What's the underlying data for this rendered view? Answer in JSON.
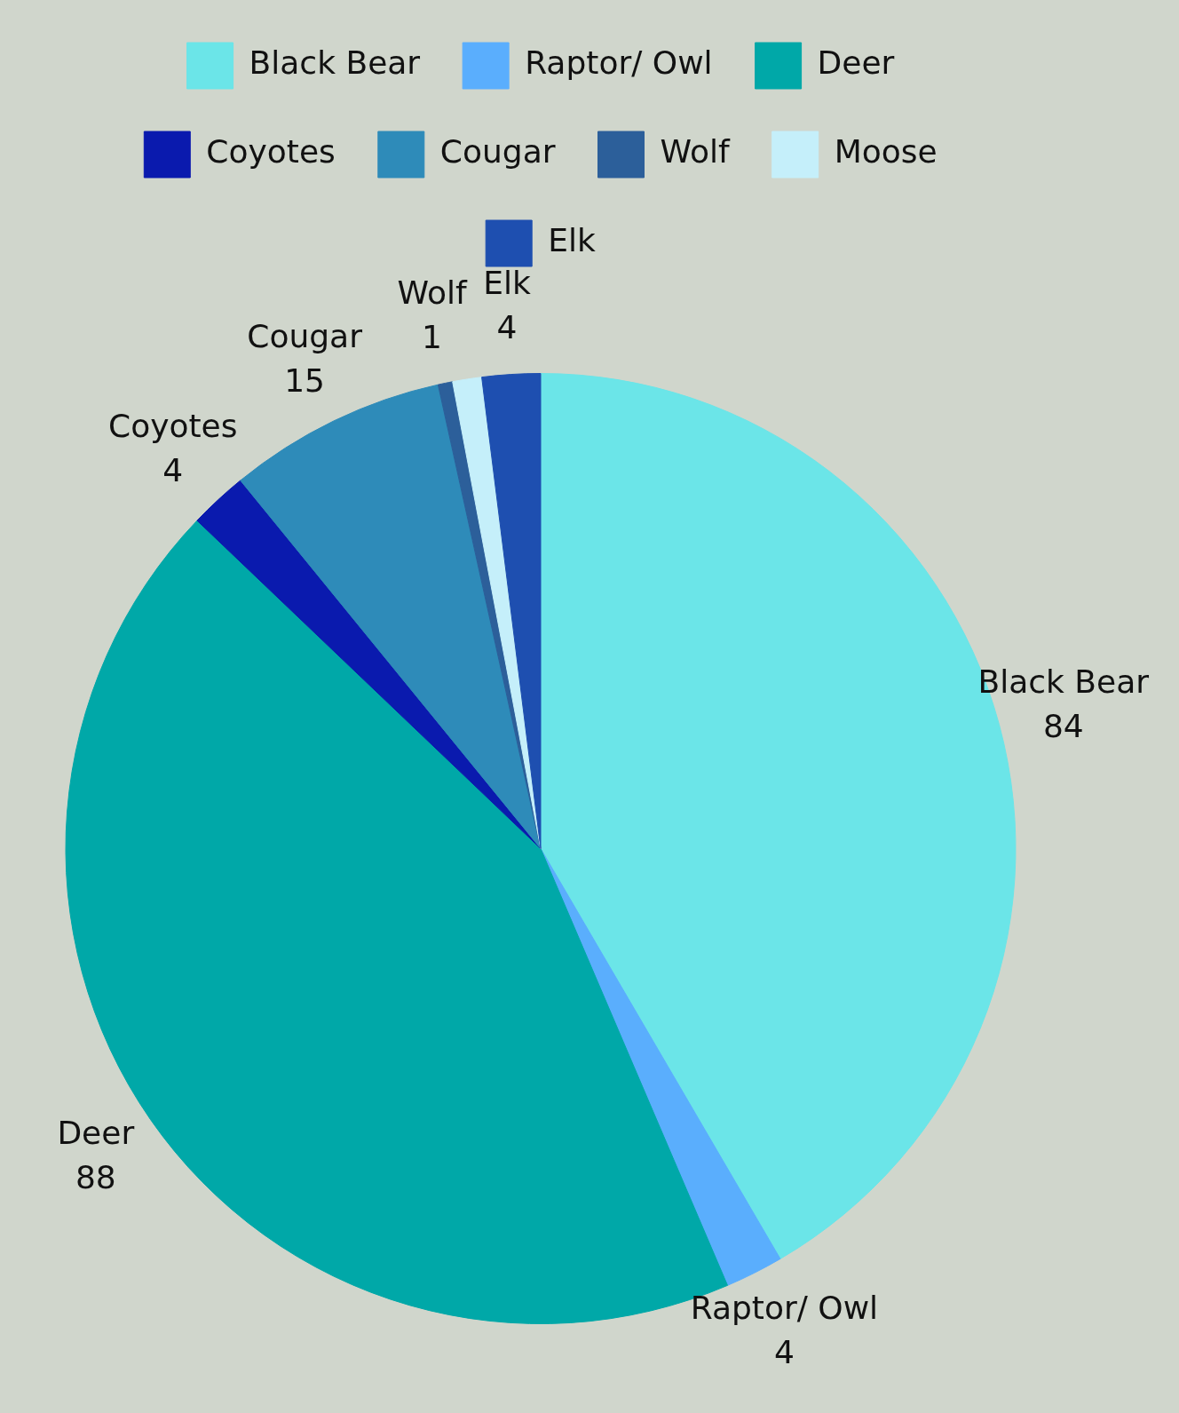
{
  "chart_data": {
    "type": "pie",
    "categories": [
      "Black Bear",
      "Raptor/ Owl",
      "Deer",
      "Coyotes",
      "Cougar",
      "Wolf",
      "Moose",
      "Elk"
    ],
    "values": [
      84,
      4,
      88,
      4,
      15,
      1,
      2,
      4
    ],
    "value_labels": [
      "84",
      "4",
      "88",
      "4",
      "15",
      "1",
      null,
      "4"
    ],
    "colors": [
      "#6be5e8",
      "#5aaefd",
      "#00a8a8",
      "#0a1aae",
      "#2e8bb9",
      "#2c5f9a",
      "#c5effa",
      "#1e4fb0"
    ],
    "legend": "top"
  }
}
